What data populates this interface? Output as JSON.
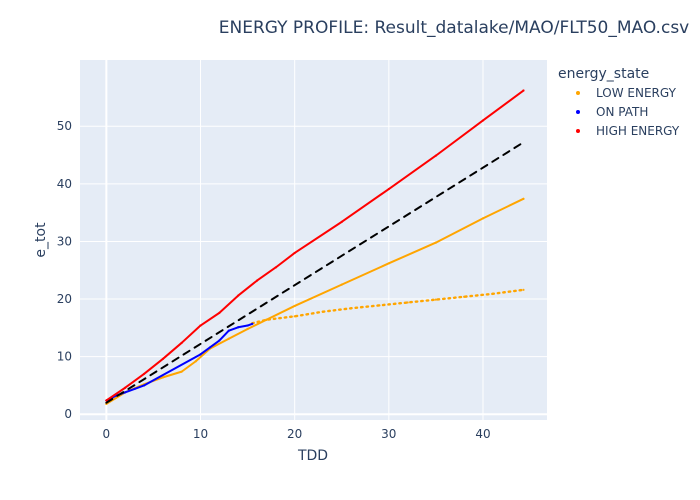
{
  "chart_data": {
    "type": "line",
    "title": "ENERGY PROFILE: Result_datalake/MAO/FLT50_MAO.csv",
    "xlabel": "TDD",
    "ylabel": "e_tot",
    "xlim": [
      -2.8,
      46.8
    ],
    "ylim": [
      -1.0,
      61.5
    ],
    "xticks": [
      0,
      10,
      20,
      30,
      40
    ],
    "yticks": [
      0,
      10,
      20,
      30,
      40,
      50
    ],
    "grid": true,
    "legend": {
      "title": "energy_state",
      "placement": "right"
    },
    "series": [
      {
        "name": "LOW ENERGY",
        "color": "#FFA500",
        "style": "solid",
        "points": [
          [
            0,
            1.8
          ],
          [
            2,
            3.8
          ],
          [
            4,
            5.2
          ],
          [
            6,
            6.4
          ],
          [
            8,
            7.4
          ],
          [
            9.5,
            9.2
          ],
          [
            11,
            11.4
          ],
          [
            13,
            13.1
          ],
          [
            15,
            14.8
          ],
          [
            17,
            16.4
          ],
          [
            20,
            18.8
          ],
          [
            25,
            22.5
          ],
          [
            30,
            26.2
          ],
          [
            35,
            29.8
          ],
          [
            40,
            34.0
          ],
          [
            44.3,
            37.4
          ]
        ]
      },
      {
        "name": "LOW ENERGY",
        "color": "#FFA500",
        "style": "dotted",
        "points": [
          [
            15.5,
            15.8
          ],
          [
            17,
            16.4
          ],
          [
            20,
            17.0
          ],
          [
            23,
            17.8
          ],
          [
            26,
            18.4
          ],
          [
            29,
            18.9
          ],
          [
            32,
            19.4
          ],
          [
            35,
            19.9
          ],
          [
            38,
            20.4
          ],
          [
            41,
            20.9
          ],
          [
            44.3,
            21.6
          ]
        ]
      },
      {
        "name": "ON PATH",
        "color": "#0000FF",
        "style": "solid",
        "points": [
          [
            0,
            2.4
          ],
          [
            1,
            3.2
          ],
          [
            2,
            3.8
          ],
          [
            3,
            4.4
          ],
          [
            4,
            5.0
          ],
          [
            10,
            10.4
          ],
          [
            11,
            11.6
          ],
          [
            12,
            12.8
          ],
          [
            13,
            14.5
          ],
          [
            14,
            15.1
          ],
          [
            15,
            15.4
          ],
          [
            15.5,
            15.7
          ]
        ]
      },
      {
        "name": "HIGH ENERGY",
        "color": "#FF0000",
        "style": "solid",
        "points": [
          [
            0,
            2.4
          ],
          [
            2,
            4.6
          ],
          [
            4,
            7.0
          ],
          [
            6,
            9.6
          ],
          [
            8,
            12.4
          ],
          [
            10,
            15.4
          ],
          [
            12,
            17.6
          ],
          [
            14,
            20.6
          ],
          [
            16,
            23.2
          ],
          [
            18,
            25.5
          ],
          [
            20,
            28.0
          ],
          [
            25,
            33.4
          ],
          [
            30,
            39.1
          ],
          [
            35,
            44.9
          ],
          [
            40,
            51.0
          ],
          [
            44.3,
            56.2
          ]
        ]
      },
      {
        "color": "#000000",
        "style": "dashed",
        "points": [
          [
            0,
            2.0
          ],
          [
            44.3,
            47.2
          ]
        ]
      }
    ]
  }
}
